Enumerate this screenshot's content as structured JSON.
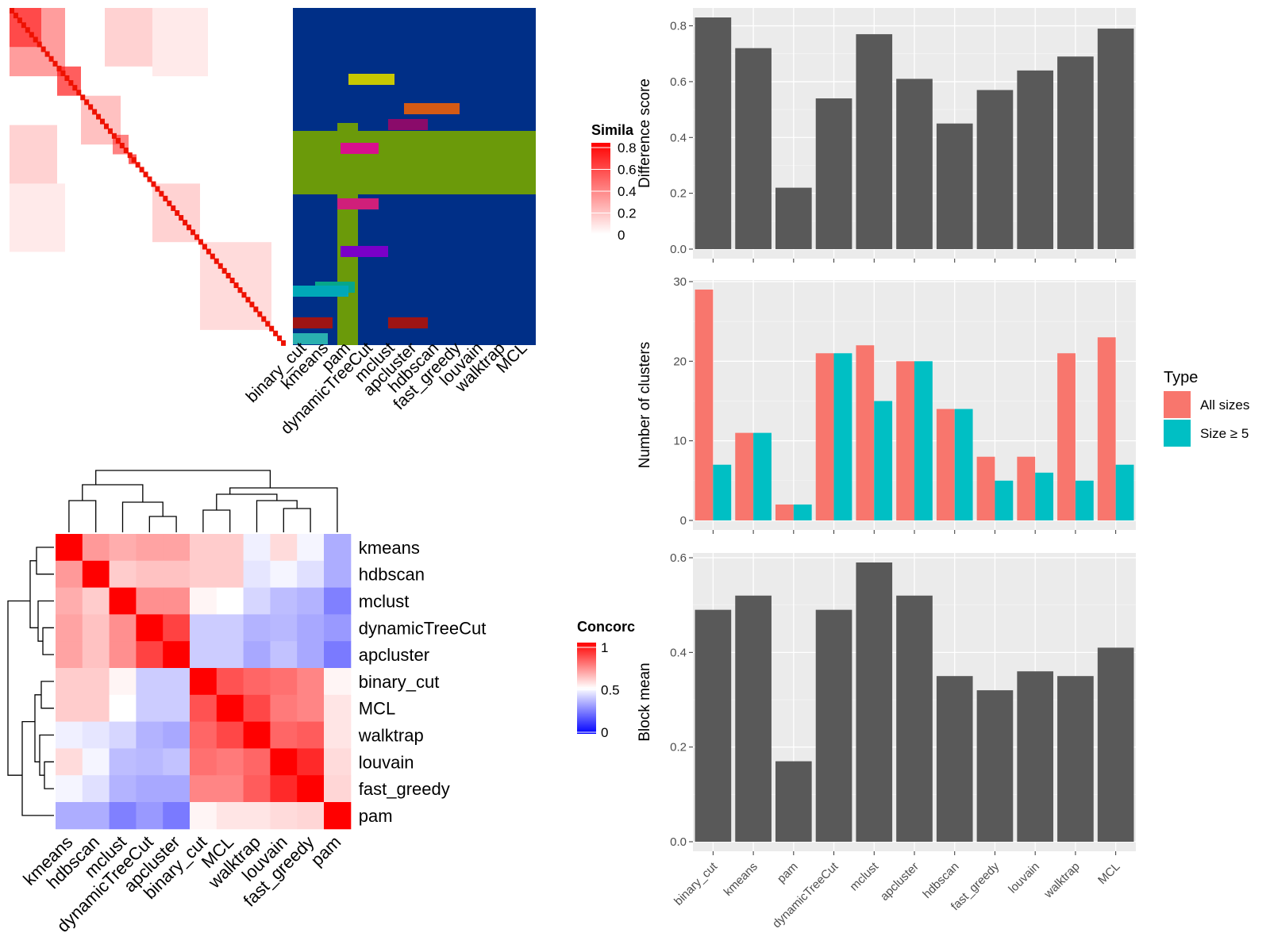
{
  "panels": {
    "similarity_heatmap": {
      "legend_title": "Simila",
      "legend_ticks": [
        "0.8",
        "0.6",
        "0.4",
        "0.2",
        "0"
      ],
      "methods": [
        "binary_cut",
        "kmeans",
        "pam",
        "dynamicTreeCut",
        "mclust",
        "apcluster",
        "hdbscan",
        "fast_greedy",
        "louvain",
        "walktrap",
        "MCL"
      ]
    },
    "concordance_heatmap": {
      "legend_title": "Concorc",
      "legend_ticks": [
        "1",
        "0.5",
        "0"
      ]
    }
  },
  "chart_data": [
    {
      "type": "heatmap",
      "id": "concordance",
      "rows": [
        "kmeans",
        "hdbscan",
        "mclust",
        "dynamicTreeCut",
        "apcluster",
        "binary_cut",
        "MCL",
        "walktrap",
        "louvain",
        "fast_greedy",
        "pam"
      ],
      "cols": [
        "kmeans",
        "hdbscan",
        "mclust",
        "dynamicTreeCut",
        "apcluster",
        "binary_cut",
        "MCL",
        "walktrap",
        "louvain",
        "fast_greedy",
        "pam"
      ],
      "values": [
        [
          1.0,
          0.7,
          0.66,
          0.68,
          0.68,
          0.6,
          0.6,
          0.47,
          0.57,
          0.48,
          0.34
        ],
        [
          0.7,
          1.0,
          0.6,
          0.62,
          0.62,
          0.6,
          0.6,
          0.45,
          0.48,
          0.44,
          0.34
        ],
        [
          0.66,
          0.6,
          1.0,
          0.72,
          0.72,
          0.52,
          0.5,
          0.42,
          0.37,
          0.35,
          0.25
        ],
        [
          0.68,
          0.62,
          0.72,
          1.0,
          0.87,
          0.4,
          0.4,
          0.35,
          0.36,
          0.33,
          0.3
        ],
        [
          0.68,
          0.62,
          0.72,
          0.87,
          1.0,
          0.4,
          0.4,
          0.33,
          0.38,
          0.33,
          0.24
        ],
        [
          0.6,
          0.6,
          0.52,
          0.4,
          0.4,
          1.0,
          0.84,
          0.8,
          0.78,
          0.74,
          0.52
        ],
        [
          0.6,
          0.6,
          0.5,
          0.4,
          0.4,
          0.84,
          1.0,
          0.86,
          0.76,
          0.74,
          0.55
        ],
        [
          0.47,
          0.45,
          0.42,
          0.35,
          0.33,
          0.8,
          0.86,
          1.0,
          0.8,
          0.82,
          0.55
        ],
        [
          0.57,
          0.48,
          0.37,
          0.36,
          0.38,
          0.78,
          0.76,
          0.8,
          1.0,
          0.92,
          0.57
        ],
        [
          0.48,
          0.44,
          0.35,
          0.33,
          0.33,
          0.74,
          0.74,
          0.82,
          0.92,
          1.0,
          0.58
        ],
        [
          0.34,
          0.34,
          0.25,
          0.3,
          0.24,
          0.52,
          0.55,
          0.55,
          0.57,
          0.58,
          1.0
        ]
      ],
      "scale": {
        "low": "#0000FF",
        "mid": "#FFFFFF",
        "high": "#FF0000",
        "range": [
          0,
          1
        ]
      }
    },
    {
      "type": "bar",
      "id": "difference_score",
      "categories": [
        "binary_cut",
        "kmeans",
        "pam",
        "dynamicTreeCut",
        "mclust",
        "apcluster",
        "hdbscan",
        "fast_greedy",
        "louvain",
        "walktrap",
        "MCL"
      ],
      "values": [
        0.83,
        0.72,
        0.22,
        0.54,
        0.77,
        0.61,
        0.45,
        0.57,
        0.64,
        0.69,
        0.79
      ],
      "ylabel": "Difference score",
      "ylim": [
        0,
        0.85
      ],
      "yticks": [
        "0.0",
        "0.2",
        "0.4",
        "0.6",
        "0.8"
      ],
      "bar_color": "#595959"
    },
    {
      "type": "bar",
      "id": "number_of_clusters",
      "categories": [
        "binary_cut",
        "kmeans",
        "pam",
        "dynamicTreeCut",
        "mclust",
        "apcluster",
        "hdbscan",
        "fast_greedy",
        "louvain",
        "walktrap",
        "MCL"
      ],
      "series": [
        {
          "name": "All sizes",
          "color": "#F8766D",
          "values": [
            29,
            11,
            2,
            21,
            22,
            20,
            14,
            8,
            8,
            21,
            23
          ]
        },
        {
          "name": "Size ≥ 5",
          "color": "#00BFC4",
          "values": [
            7,
            11,
            2,
            21,
            15,
            20,
            14,
            5,
            6,
            5,
            7
          ]
        }
      ],
      "ylabel": "Number of clusters",
      "ylim": [
        0,
        30
      ],
      "yticks": [
        "0",
        "10",
        "20",
        "30"
      ],
      "legend_title": "Type",
      "legend_position": "right"
    },
    {
      "type": "bar",
      "id": "block_mean",
      "categories": [
        "binary_cut",
        "kmeans",
        "pam",
        "dynamicTreeCut",
        "mclust",
        "apcluster",
        "hdbscan",
        "fast_greedy",
        "louvain",
        "walktrap",
        "MCL"
      ],
      "values": [
        0.49,
        0.52,
        0.17,
        0.49,
        0.59,
        0.52,
        0.35,
        0.32,
        0.36,
        0.35,
        0.41
      ],
      "ylabel": "Block mean",
      "ylim": [
        0,
        0.62
      ],
      "yticks": [
        "0.0",
        "0.2",
        "0.4",
        "0.6"
      ],
      "bar_color": "#595959"
    }
  ]
}
